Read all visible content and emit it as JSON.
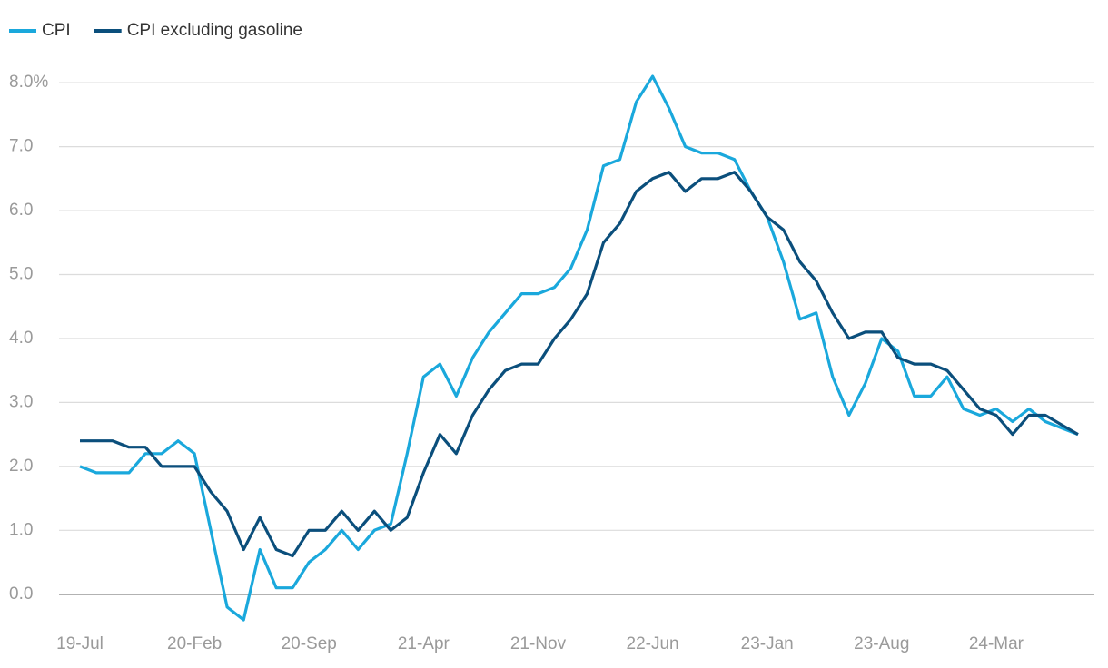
{
  "chart_data": {
    "type": "line",
    "categories": [
      "19-Jul",
      null,
      null,
      null,
      null,
      null,
      null,
      "20-Feb",
      null,
      null,
      null,
      null,
      null,
      null,
      "20-Sep",
      null,
      null,
      null,
      null,
      null,
      null,
      "21-Apr",
      null,
      null,
      null,
      null,
      null,
      null,
      "21-Nov",
      null,
      null,
      null,
      null,
      null,
      null,
      "22-Jun",
      null,
      null,
      null,
      null,
      null,
      null,
      "23-Jan",
      null,
      null,
      null,
      null,
      null,
      null,
      "23-Aug",
      null,
      null,
      null,
      null,
      null,
      null,
      "24-Mar",
      null,
      null,
      null,
      null,
      null
    ],
    "series": [
      {
        "name": "CPI",
        "color": "#1aa8dc",
        "values": [
          2.0,
          1.9,
          1.9,
          1.9,
          2.2,
          2.2,
          2.4,
          2.2,
          1.0,
          -0.2,
          -0.4,
          0.7,
          0.1,
          0.1,
          0.5,
          0.7,
          1.0,
          0.7,
          1.0,
          1.1,
          2.2,
          3.4,
          3.6,
          3.1,
          3.7,
          4.1,
          4.4,
          4.7,
          4.7,
          4.8,
          5.1,
          5.7,
          6.7,
          6.8,
          7.7,
          8.1,
          7.6,
          7.0,
          6.9,
          6.9,
          6.8,
          6.3,
          5.9,
          5.2,
          4.3,
          4.4,
          3.4,
          2.8,
          3.3,
          4.0,
          3.8,
          3.1,
          3.1,
          3.4,
          2.9,
          2.8,
          2.9,
          2.7,
          2.9,
          2.7,
          2.6,
          2.5
        ]
      },
      {
        "name": "CPI excluding gasoline",
        "color": "#0b4f7c",
        "values": [
          2.4,
          2.4,
          2.4,
          2.3,
          2.3,
          2.0,
          2.0,
          2.0,
          1.6,
          1.3,
          0.7,
          1.2,
          0.7,
          0.6,
          1.0,
          1.0,
          1.3,
          1.0,
          1.3,
          1.0,
          1.2,
          1.9,
          2.5,
          2.2,
          2.8,
          3.2,
          3.5,
          3.6,
          3.6,
          4.0,
          4.3,
          4.7,
          5.5,
          5.8,
          6.3,
          6.5,
          6.6,
          6.3,
          6.5,
          6.5,
          6.6,
          6.3,
          5.9,
          5.7,
          5.2,
          4.9,
          4.4,
          4.0,
          4.1,
          4.1,
          3.7,
          3.6,
          3.6,
          3.5,
          3.2,
          2.9,
          2.8,
          2.5,
          2.8,
          2.8,
          2.65,
          2.5
        ]
      }
    ],
    "ylim": [
      -0.5,
      8.3
    ],
    "yticks": [
      {
        "value": 0,
        "label": "0.0"
      },
      {
        "value": 1,
        "label": "1.0"
      },
      {
        "value": 2,
        "label": "2.0"
      },
      {
        "value": 3,
        "label": "3.0"
      },
      {
        "value": 4,
        "label": "4.0"
      },
      {
        "value": 5,
        "label": "5.0"
      },
      {
        "value": 6,
        "label": "6.0"
      },
      {
        "value": 7,
        "label": "7.0"
      },
      {
        "value": 8,
        "label": "8.0%"
      }
    ],
    "grid": true,
    "legend": "top-left"
  }
}
